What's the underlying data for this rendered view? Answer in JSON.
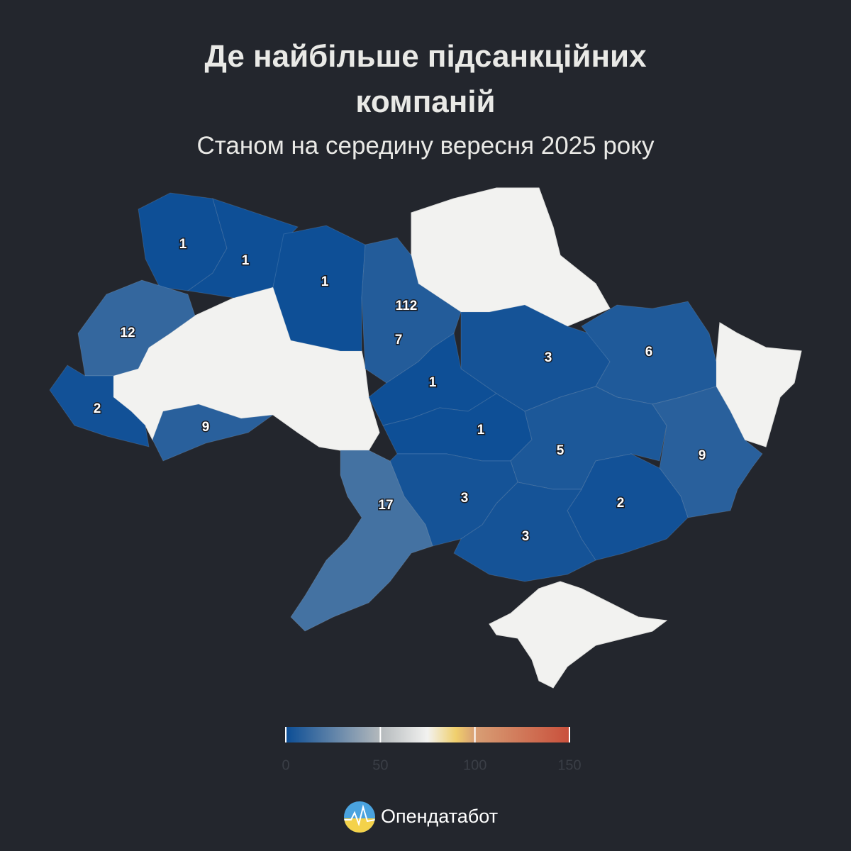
{
  "title": "Де найбільше підсанкційних компаній",
  "subtitle": "Станом на середину вересня 2025 року",
  "map": {
    "regions": [
      {
        "value": 1
      },
      {
        "value": 1
      },
      {
        "value": 1
      },
      {
        "value": 112
      },
      {
        "value": 7
      },
      {
        "value": 12
      },
      {
        "value": 2
      },
      {
        "value": 9
      },
      {
        "value": 3
      },
      {
        "value": 6
      },
      {
        "value": 1
      },
      {
        "value": 1
      },
      {
        "value": 5
      },
      {
        "value": 9
      },
      {
        "value": 2
      },
      {
        "value": 3
      },
      {
        "value": 3
      },
      {
        "value": 17
      }
    ],
    "colorscale": [
      [
        0,
        "#0b4d95"
      ],
      [
        50,
        "#b4b9bc"
      ],
      [
        75,
        "#f2f2f0"
      ],
      [
        90,
        "#f0cf6c"
      ],
      [
        100,
        "#d89f75"
      ],
      [
        150,
        "#c9503c"
      ]
    ],
    "lim": [
      0,
      150
    ],
    "ticks": [
      0,
      50,
      100,
      150
    ]
  },
  "logo": "Опендатабот"
}
